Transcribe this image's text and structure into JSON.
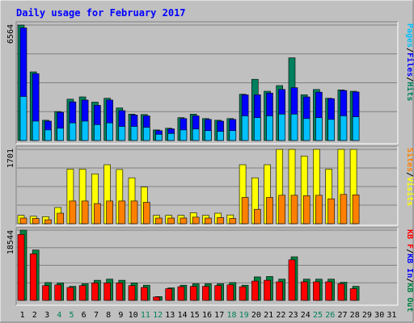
{
  "chart_data": {
    "type": "bar",
    "title": "Daily usage for February 2017",
    "categories": [
      "1",
      "2",
      "3",
      "4",
      "5",
      "6",
      "7",
      "8",
      "9",
      "10",
      "11",
      "12",
      "13",
      "14",
      "15",
      "16",
      "17",
      "18",
      "19",
      "20",
      "21",
      "22",
      "23",
      "24",
      "25",
      "26",
      "27",
      "28",
      "29",
      "30",
      "31"
    ],
    "weekend_days": [
      "4",
      "5",
      "11",
      "12",
      "18",
      "19",
      "25",
      "26"
    ],
    "colors": {
      "background": "#C0C0C0",
      "frame": "#000000",
      "title": "#0000FF",
      "grid": "#808080",
      "hits": "#00805C",
      "files": "#0000FF",
      "pages": "#00C0FF",
      "visits": "#FFFF00",
      "sites": "#FF8000",
      "kb_in": "#008040",
      "kb_out": "#FF0000",
      "weekend_label": "#00805C",
      "weekday_label": "#000000"
    },
    "panels": [
      {
        "id": "hits-files-pages",
        "ymax_label": "6564",
        "ylim": [
          0,
          6564
        ],
        "legend": [
          {
            "text": "Pages",
            "color": "#00C0FF"
          },
          {
            "text": "/",
            "color": "#000000"
          },
          {
            "text": "Files",
            "color": "#0000FF"
          },
          {
            "text": "/",
            "color": "#000000"
          },
          {
            "text": "Hits",
            "color": "#00805C"
          }
        ],
        "series": [
          {
            "name": "Hits",
            "values": [
              6564,
              3900,
              1150,
              1650,
              2350,
              2480,
              2180,
              2400,
              1850,
              1500,
              1480,
              600,
              700,
              1300,
              1500,
              1250,
              1150,
              1250,
              2630,
              3480,
              2800,
              3120,
              4700,
              2600,
              2900,
              2400,
              2880,
              2800,
              0,
              0,
              0
            ]
          },
          {
            "name": "Files",
            "values": [
              6400,
              3800,
              1100,
              1600,
              2200,
              2300,
              2000,
              2300,
              1700,
              1450,
              1400,
              560,
              660,
              1250,
              1400,
              1200,
              1100,
              1200,
              2600,
              2600,
              2700,
              2900,
              3000,
              2480,
              2750,
              2380,
              2840,
              2760,
              0,
              0,
              0
            ]
          },
          {
            "name": "Pages",
            "values": [
              2500,
              1100,
              600,
              700,
              1000,
              1100,
              900,
              1000,
              800,
              800,
              750,
              350,
              400,
              600,
              650,
              560,
              520,
              560,
              1400,
              1300,
              1400,
              1500,
              1500,
              1250,
              1300,
              1200,
              1400,
              1350,
              0,
              0,
              0
            ]
          }
        ]
      },
      {
        "id": "visits-sites",
        "ymax_label": "1701",
        "ylim": [
          0,
          1701
        ],
        "legend": [
          {
            "text": "Sites",
            "color": "#FF8000"
          },
          {
            "text": "/",
            "color": "#000000"
          },
          {
            "text": "Visits",
            "color": "#FFFF00"
          }
        ],
        "series": [
          {
            "name": "Visits",
            "values": [
              190,
              170,
              160,
              370,
              1250,
              1250,
              1140,
              1350,
              1240,
              1050,
              840,
              190,
              190,
              190,
              250,
              190,
              240,
              200,
              1350,
              1050,
              1350,
              1701,
              1701,
              1550,
              1701,
              1250,
              1701,
              1701,
              0,
              0,
              0
            ]
          },
          {
            "name": "Sites",
            "values": [
              130,
              120,
              90,
              240,
              520,
              520,
              460,
              520,
              520,
              520,
              490,
              130,
              130,
              130,
              150,
              130,
              140,
              120,
              600,
              330,
              600,
              650,
              650,
              640,
              650,
              570,
              670,
              660,
              0,
              0,
              0
            ]
          }
        ]
      },
      {
        "id": "kbin-kbout",
        "ymax_label": "18544",
        "ylim": [
          0,
          18544
        ],
        "legend": [
          {
            "text": "KB F",
            "color": "#FF0000"
          },
          {
            "text": "/",
            "color": "#000000"
          },
          {
            "text": "KB In",
            "color": "#0000FF"
          },
          {
            "text": "/",
            "color": "#000000"
          },
          {
            "text": "KB Out",
            "color": "#008040"
          }
        ],
        "series": [
          {
            "name": "KB In",
            "values": [
              18544,
              13300,
              4700,
              4600,
              3700,
              4400,
              5300,
              5600,
              5300,
              4600,
              4000,
              1000,
              3300,
              4000,
              4400,
              4400,
              4400,
              4700,
              4000,
              6200,
              6300,
              5600,
              11500,
              5600,
              5600,
              5600,
              4800,
              3700,
              0,
              0,
              0
            ]
          },
          {
            "name": "KB F",
            "values": [
              17400,
              12300,
              3900,
              4100,
              3400,
              3900,
              4600,
              4600,
              4600,
              3900,
              3400,
              900,
              3100,
              3600,
              3700,
              3700,
              3900,
              4100,
              3600,
              5100,
              5300,
              4900,
              10700,
              4900,
              4900,
              4900,
              4400,
              3100,
              0,
              0,
              0
            ]
          }
        ]
      }
    ]
  }
}
